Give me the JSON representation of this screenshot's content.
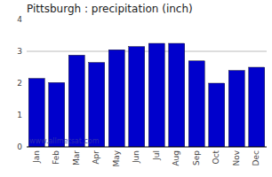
{
  "chart_data": {
    "type": "bar",
    "title": "Pittsburgh : precipitation (inch)",
    "categories": [
      "Jan",
      "Feb",
      "Mar",
      "Apr",
      "May",
      "Jun",
      "Jul",
      "Aug",
      "Sep",
      "Oct",
      "Nov",
      "Dec"
    ],
    "values": [
      2.15,
      2.02,
      2.88,
      2.65,
      3.05,
      3.15,
      3.25,
      3.25,
      2.7,
      2.0,
      2.4,
      2.5
    ],
    "color": "#0000cc",
    "ylim": [
      0,
      4
    ],
    "yticks": [
      0,
      1,
      2,
      3,
      4
    ],
    "reference_line": 3,
    "annotations": [
      "www.allmetsat.com"
    ]
  }
}
